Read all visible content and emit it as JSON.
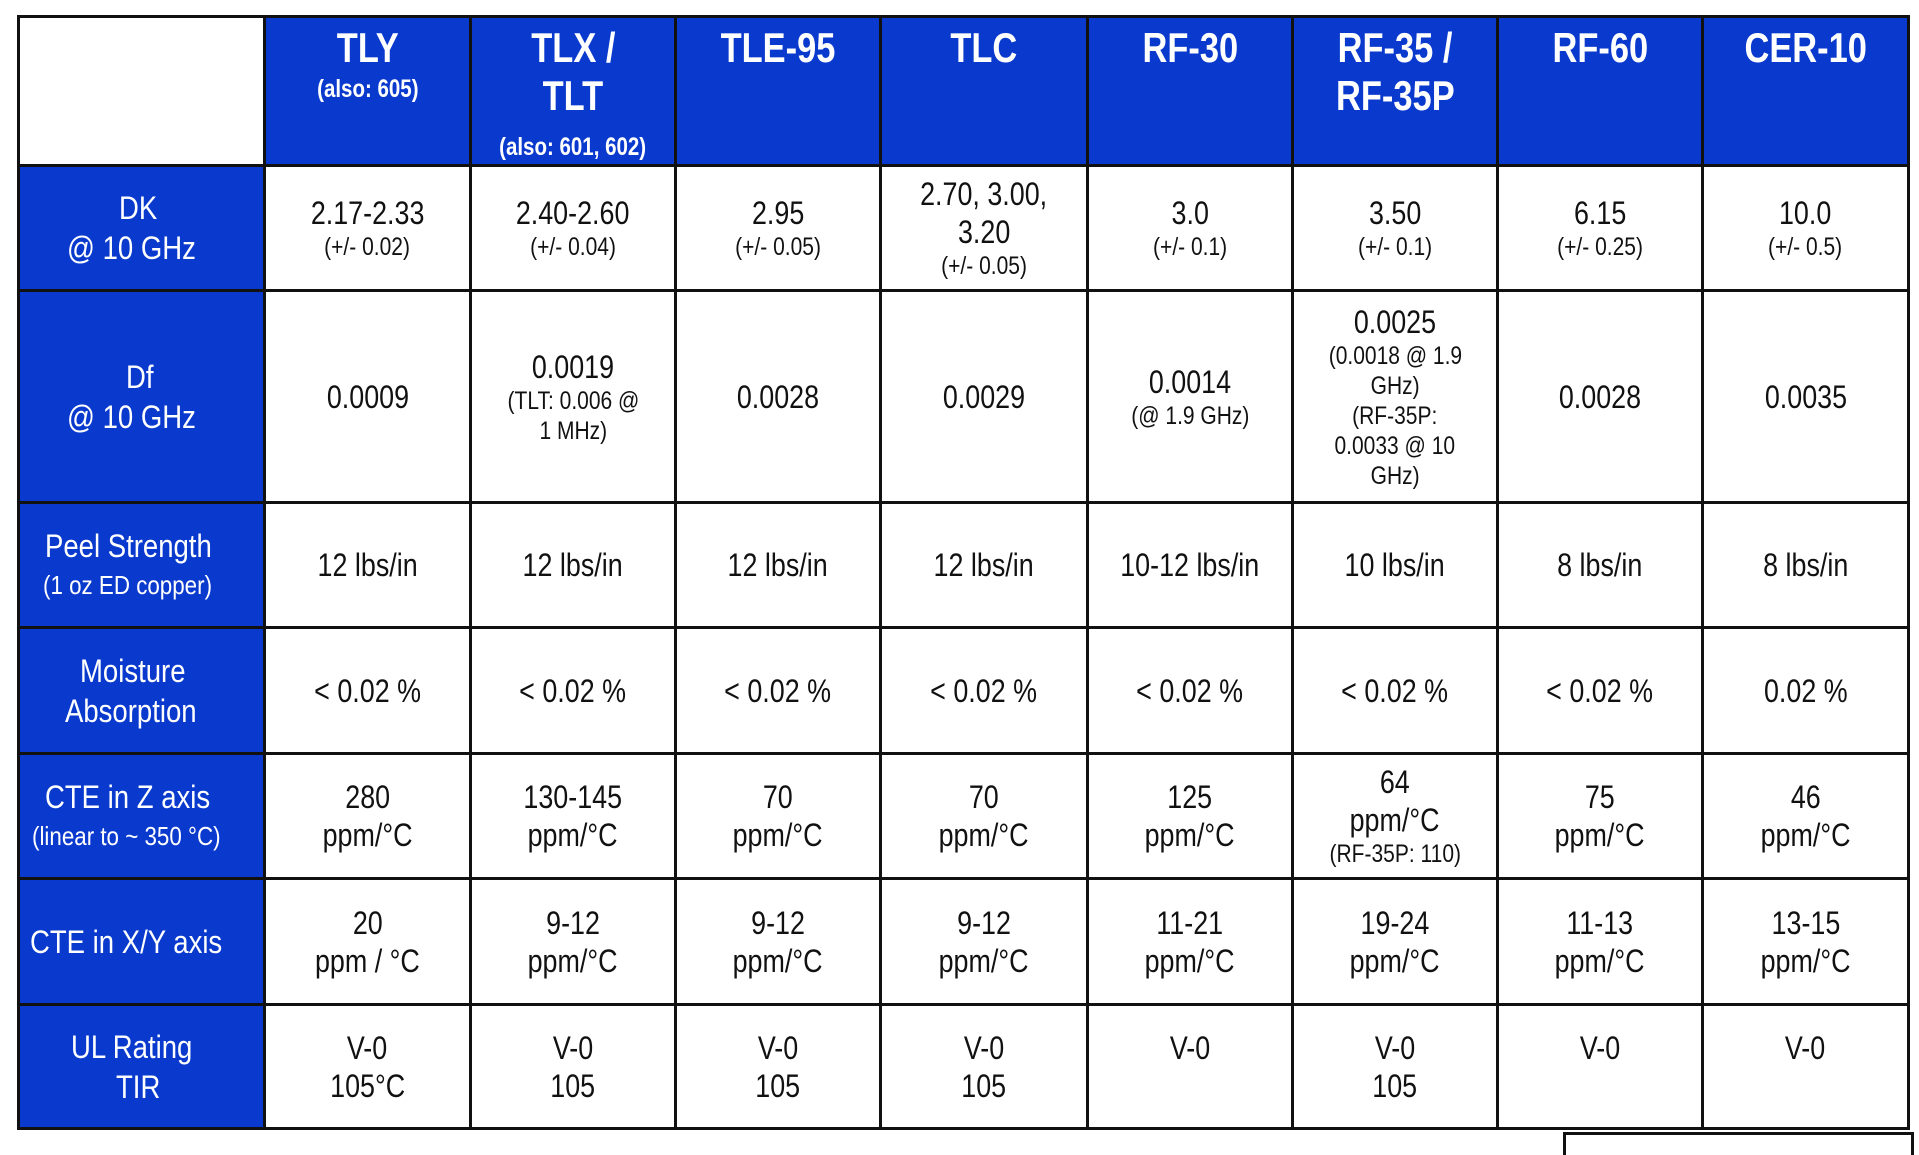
{
  "table": {
    "columns": [
      {
        "name": "TLY",
        "sub": "(also: 605)",
        "sub_position": "under"
      },
      {
        "name_lines": [
          "TLX /",
          "TLT"
        ],
        "sub": "(also: 601, 602)",
        "sub_position": "bottom"
      },
      {
        "name": "TLE-95"
      },
      {
        "name": "TLC"
      },
      {
        "name": "RF-30"
      },
      {
        "name_lines": [
          "RF-35 /",
          "RF-35P"
        ]
      },
      {
        "name": "RF-60"
      },
      {
        "name": "CER-10"
      }
    ],
    "rows": [
      {
        "label": [
          "DK",
          "@ 10 GHz"
        ],
        "cells": [
          {
            "main": [
              "2.17-2.33"
            ],
            "sub": [
              "(+/- 0.02)"
            ]
          },
          {
            "main": [
              "2.40-2.60"
            ],
            "sub": [
              "(+/- 0.04)"
            ]
          },
          {
            "main": [
              "2.95"
            ],
            "sub": [
              "(+/- 0.05)"
            ]
          },
          {
            "main": [
              "2.70, 3.00,",
              "3.20"
            ],
            "sub": [
              "(+/- 0.05)"
            ]
          },
          {
            "main": [
              "3.0"
            ],
            "sub": [
              "(+/- 0.1)"
            ]
          },
          {
            "main": [
              "3.50"
            ],
            "sub": [
              "(+/- 0.1)"
            ]
          },
          {
            "main": [
              "6.15"
            ],
            "sub": [
              "(+/- 0.25)"
            ]
          },
          {
            "main": [
              "10.0"
            ],
            "sub": [
              "(+/- 0.5)"
            ]
          }
        ]
      },
      {
        "label": [
          "Df",
          "@ 10 GHz"
        ],
        "cells": [
          {
            "main": [
              "0.0009"
            ],
            "sub": []
          },
          {
            "main": [
              "0.0019"
            ],
            "sub": [
              "(TLT: 0.006 @",
              "1 MHz)"
            ]
          },
          {
            "main": [
              "0.0028"
            ],
            "sub": []
          },
          {
            "main": [
              "0.0029"
            ],
            "sub": []
          },
          {
            "main": [
              "0.0014"
            ],
            "sub": [
              "(@ 1.9 GHz)"
            ]
          },
          {
            "main": [
              "0.0025"
            ],
            "sub": [
              "(0.0018 @ 1.9",
              "GHz)",
              "(RF-35P:",
              "0.0033 @ 10",
              "GHz)"
            ]
          },
          {
            "main": [
              "0.0028"
            ],
            "sub": []
          },
          {
            "main": [
              "0.0035"
            ],
            "sub": []
          }
        ]
      },
      {
        "label": [
          "Peel Strength"
        ],
        "label_sub": "(1 oz ED copper)",
        "cells": [
          {
            "main": [
              "12 lbs/in"
            ],
            "sub": []
          },
          {
            "main": [
              "12 lbs/in"
            ],
            "sub": []
          },
          {
            "main": [
              "12 lbs/in"
            ],
            "sub": []
          },
          {
            "main": [
              "12 lbs/in"
            ],
            "sub": []
          },
          {
            "main": [
              "10-12 lbs/in"
            ],
            "sub": []
          },
          {
            "main": [
              "10 lbs/in"
            ],
            "sub": []
          },
          {
            "main": [
              "8 lbs/in"
            ],
            "sub": []
          },
          {
            "main": [
              "8 lbs/in"
            ],
            "sub": []
          }
        ]
      },
      {
        "label": [
          "Moisture",
          "Absorption"
        ],
        "cells": [
          {
            "main": [
              "< 0.02 %"
            ],
            "sub": []
          },
          {
            "main": [
              "< 0.02 %"
            ],
            "sub": []
          },
          {
            "main": [
              "< 0.02 %"
            ],
            "sub": []
          },
          {
            "main": [
              "< 0.02 %"
            ],
            "sub": []
          },
          {
            "main": [
              "< 0.02 %"
            ],
            "sub": []
          },
          {
            "main": [
              "< 0.02 %"
            ],
            "sub": []
          },
          {
            "main": [
              "< 0.02 %"
            ],
            "sub": []
          },
          {
            "main": [
              "0.02 %"
            ],
            "sub": []
          }
        ]
      },
      {
        "label": [
          "CTE in Z axis"
        ],
        "label_sub": "(linear to ~ 350 °C)",
        "cells": [
          {
            "main": [
              "280",
              "ppm/°C"
            ],
            "sub": []
          },
          {
            "main": [
              "130-145",
              "ppm/°C"
            ],
            "sub": []
          },
          {
            "main": [
              "70",
              "ppm/°C"
            ],
            "sub": []
          },
          {
            "main": [
              "70",
              "ppm/°C"
            ],
            "sub": []
          },
          {
            "main": [
              "125",
              "ppm/°C"
            ],
            "sub": []
          },
          {
            "main": [
              "64",
              "ppm/°C"
            ],
            "sub": [
              "(RF-35P: 110)"
            ]
          },
          {
            "main": [
              "75",
              "ppm/°C"
            ],
            "sub": []
          },
          {
            "main": [
              "46",
              "ppm/°C"
            ],
            "sub": []
          }
        ]
      },
      {
        "label": [
          "CTE in X/Y axis"
        ],
        "cells": [
          {
            "main": [
              "20",
              "ppm / °C"
            ],
            "sub": []
          },
          {
            "main": [
              "9-12",
              "ppm/°C"
            ],
            "sub": []
          },
          {
            "main": [
              "9-12",
              "ppm/°C"
            ],
            "sub": []
          },
          {
            "main": [
              "9-12",
              "ppm/°C"
            ],
            "sub": []
          },
          {
            "main": [
              "11-21",
              "ppm/°C"
            ],
            "sub": []
          },
          {
            "main": [
              "19-24",
              "ppm/°C"
            ],
            "sub": []
          },
          {
            "main": [
              "11-13",
              "ppm/°C"
            ],
            "sub": []
          },
          {
            "main": [
              "13-15",
              "ppm/°C"
            ],
            "sub": []
          }
        ]
      },
      {
        "label": [
          "UL Rating",
          "TIR"
        ],
        "cells": [
          {
            "main": [
              "V-0",
              "105°C"
            ],
            "sub": []
          },
          {
            "main": [
              "V-0",
              "105"
            ],
            "sub": []
          },
          {
            "main": [
              "V-0",
              "105"
            ],
            "sub": []
          },
          {
            "main": [
              "V-0",
              "105"
            ],
            "sub": []
          },
          {
            "main": [
              "V-0",
              ""
            ],
            "sub": []
          },
          {
            "main": [
              "V-0",
              "105"
            ],
            "sub": []
          },
          {
            "main": [
              "V-0",
              ""
            ],
            "sub": []
          },
          {
            "main": [
              "V-0",
              ""
            ],
            "sub": []
          }
        ]
      }
    ]
  },
  "colors": {
    "header_blue": "#0a3acd",
    "border": "#111111",
    "header_text": "#ffffff",
    "body_text": "#111111"
  }
}
